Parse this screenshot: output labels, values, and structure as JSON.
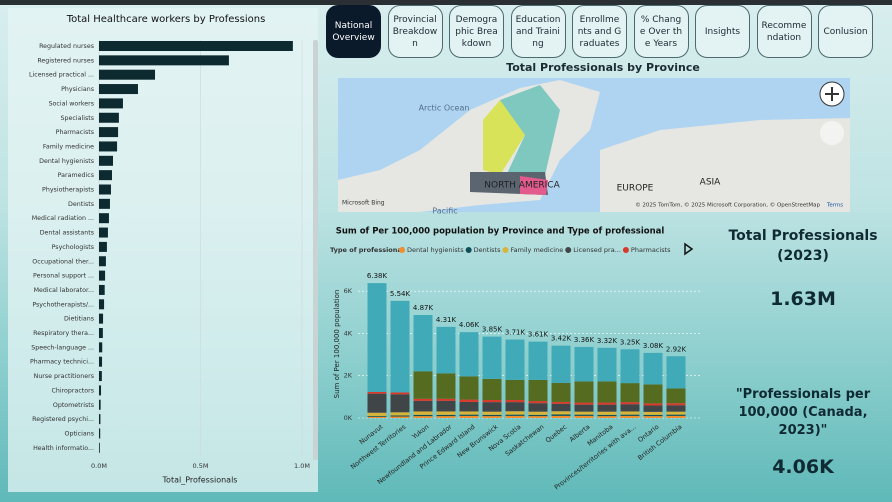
{
  "nav": [
    "National Overview",
    "Provincial Breakdown",
    "Demographic Breakdown",
    "Education and Training",
    "Enrollments and Graduates",
    "% Change Over the Years",
    "Insights",
    "Recommendation",
    "Conlusion"
  ],
  "map": {
    "title": "Total Professionals by Province",
    "labels": [
      "Arctic Ocean",
      "NORTH AMERICA",
      "EUROPE",
      "ASIA",
      "Pacific"
    ],
    "attribution": "© 2025 TomTom, © 2025 Microsoft Corporation, © OpenStreetMap",
    "terms": "Terms",
    "brand": "Microsoft Bing"
  },
  "cards": [
    {
      "title": "Total Professionals (2023)",
      "value": "1.63M"
    },
    {
      "title": "\"Professionals per 100,000 (Canada, 2023)\"",
      "value": "4.06K"
    }
  ],
  "chart_data": [
    {
      "type": "bar",
      "orientation": "horizontal",
      "title": "Total Healthcare workers by Professions",
      "x_label": "Total_Professionals",
      "color": "#0d2a30",
      "categories": [
        "Regulated nurses",
        "Registered nurses",
        "Licensed practical ...",
        "Physicians",
        "Social workers",
        "Specialists",
        "Pharmacists",
        "Family medicine",
        "Dental hygienists",
        "Paramedics",
        "Physiotherapists",
        "Dentists",
        "Medical radiation ...",
        "Dental assistants",
        "Psychologists",
        "Occupational ther...",
        "Personal support ...",
        "Medical laborator...",
        "Psychotherapists/...",
        "Dietitians",
        "Respiratory thera...",
        "Speech-language ...",
        "Pharmacy technici...",
        "Nurse practitioners",
        "Chiropractors",
        "Optometrists",
        "Registered psychi...",
        "Opticians",
        "Health informatio..."
      ],
      "values": [
        955000,
        640000,
        276000,
        192000,
        118000,
        98000,
        94000,
        89000,
        69000,
        64000,
        59000,
        54000,
        49000,
        44000,
        39000,
        34000,
        30000,
        28000,
        25000,
        20000,
        19000,
        16000,
        15000,
        14000,
        10000,
        8000,
        7000,
        6000,
        4000
      ],
      "xlim": [
        0,
        1000000
      ],
      "xticks": [
        {
          "value": 0,
          "label": "0.0M"
        },
        {
          "value": 500000,
          "label": "0.5M"
        },
        {
          "value": 1000000,
          "label": "1.0M"
        }
      ],
      "grid": true
    },
    {
      "type": "stacked_bar",
      "title": "Sum of  Per 100,000 population by Province and Type of professional",
      "legend_title": "Type of professional",
      "y_label": "Sum of Per 100,000 population",
      "categories": [
        "Nunavut",
        "Northwest Territories",
        "Yukon",
        "Newfoundland and Labrador",
        "Prince Edward Island",
        "New Brunswick",
        "Nova Scotia",
        "Saskatchewan",
        "Quebec",
        "Alberta",
        "Manitoba",
        "Provinces/territories with ava...",
        "Ontario",
        "British Columbia"
      ],
      "series": [
        {
          "name": "Dental hygienists",
          "color": "#f28e2b",
          "values": [
            60,
            70,
            90,
            90,
            100,
            90,
            100,
            90,
            100,
            100,
            90,
            100,
            90,
            100
          ]
        },
        {
          "name": "Dentists",
          "color": "#0f4f55",
          "values": [
            40,
            50,
            60,
            60,
            60,
            60,
            60,
            60,
            70,
            60,
            60,
            60,
            60,
            60
          ]
        },
        {
          "name": "Family medicine",
          "color": "#d9b43a",
          "values": [
            150,
            150,
            160,
            160,
            150,
            150,
            160,
            150,
            150,
            140,
            150,
            150,
            140,
            140
          ]
        },
        {
          "name": "Licensed pra...",
          "color": "#404548",
          "values": [
            900,
            850,
            500,
            500,
            450,
            450,
            430,
            400,
            350,
            330,
            330,
            340,
            300,
            300
          ]
        },
        {
          "name": "Pharmacists",
          "color": "#d8392b",
          "values": [
            80,
            90,
            100,
            100,
            110,
            100,
            100,
            100,
            90,
            100,
            100,
            100,
            100,
            100
          ]
        },
        {
          "name": null,
          "color": "#556b1f",
          "values": [
            0,
            0,
            1300,
            1200,
            1100,
            1000,
            950,
            1000,
            900,
            1000,
            1000,
            900,
            900,
            700
          ]
        },
        {
          "name": null,
          "color": "#41aab8",
          "values": [
            5150,
            4330,
            2660,
            2200,
            2090,
            2000,
            1910,
            1810,
            1760,
            1630,
            1590,
            1600,
            1490,
            1520
          ]
        }
      ],
      "totals": [
        6380,
        5540,
        4870,
        4310,
        4060,
        3850,
        3710,
        3610,
        3420,
        3360,
        3320,
        3250,
        3080,
        2920
      ],
      "total_labels": [
        "6.38K",
        "5.54K",
        "4.87K",
        "4.31K",
        "4.06K",
        "3.85K",
        "3.71K",
        "3.61K",
        "3.42K",
        "3.36K",
        "3.32K",
        "3.25K",
        "3.08K",
        "2.92K"
      ],
      "ylim": [
        0,
        7000
      ],
      "yticks": [
        {
          "value": 0,
          "label": "0K"
        },
        {
          "value": 2000,
          "label": "2K"
        },
        {
          "value": 4000,
          "label": "4K"
        },
        {
          "value": 6000,
          "label": "6K"
        }
      ],
      "grid": true
    }
  ]
}
